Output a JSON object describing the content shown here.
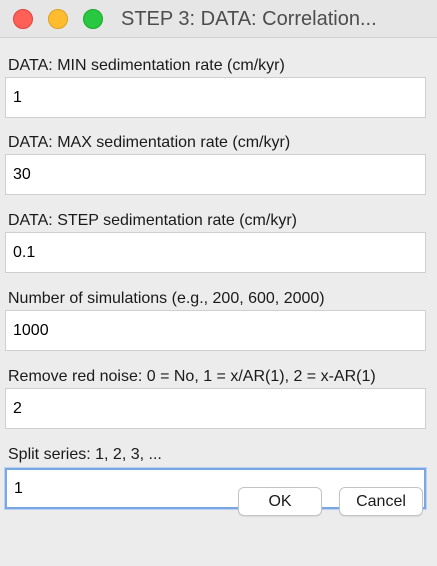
{
  "window": {
    "title": "STEP 3: DATA: Correlation..."
  },
  "fields": [
    {
      "label": "DATA: MIN  sedimentation rate (cm/kyr)",
      "value": "1"
    },
    {
      "label": "DATA: MAX  sedimentation rate (cm/kyr)",
      "value": "30"
    },
    {
      "label": "DATA: STEP sedimentation rate (cm/kyr)",
      "value": "0.1"
    },
    {
      "label": "Number of simulations (e.g., 200, 600, 2000)",
      "value": "1000"
    },
    {
      "label": "Remove red noise: 0 = No, 1 = x/AR(1), 2 = x-AR(1)",
      "value": "2"
    },
    {
      "label": "Split series: 1, 2, 3, ...",
      "value": "1"
    }
  ],
  "buttons": {
    "ok_label": "OK",
    "cancel_label": "Cancel"
  }
}
